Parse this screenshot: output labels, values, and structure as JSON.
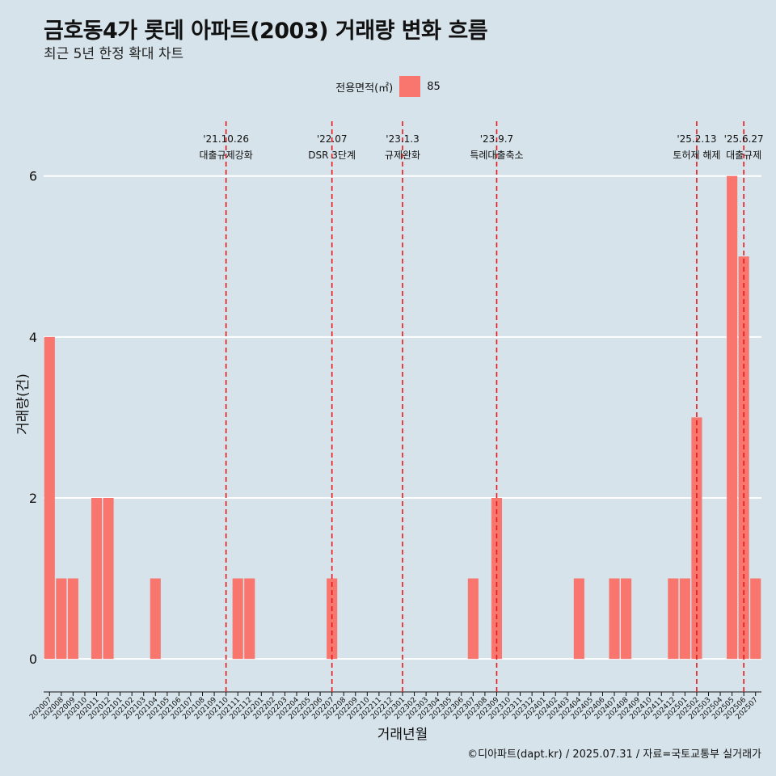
{
  "title": "금호동4가 롯데 아파트(2003) 거래량 변화 흐름",
  "subtitle": "최근 5년 한정 확대 차트",
  "caption": "©디아파트(dapt.kr) / 2025.07.31 / 자료=국토교통부 실거래가",
  "colors": {
    "background": "#d6e3ea",
    "bar": "#f8766d",
    "event_line": "#e41a1c",
    "grid": "#ffffff"
  },
  "legend": {
    "title": "전용면적(㎡)",
    "items": [
      {
        "label": "85",
        "color": "#f8766d"
      }
    ]
  },
  "chart_data": {
    "type": "bar",
    "xlabel": "거래년월",
    "ylabel": "거래량(건)",
    "ylim": [
      -0.3,
      6.7
    ],
    "yticks": [
      0,
      2,
      4,
      6
    ],
    "grid": "horizontal",
    "legend_position": "top-center",
    "categories": [
      "202007",
      "202008",
      "202009",
      "202010",
      "202011",
      "202012",
      "202101",
      "202102",
      "202103",
      "202104",
      "202105",
      "202106",
      "202107",
      "202108",
      "202109",
      "202110",
      "202111",
      "202112",
      "202201",
      "202202",
      "202203",
      "202204",
      "202205",
      "202206",
      "202207",
      "202208",
      "202209",
      "202210",
      "202211",
      "202212",
      "202301",
      "202302",
      "202303",
      "202304",
      "202305",
      "202306",
      "202307",
      "202308",
      "202309",
      "202310",
      "202311",
      "202312",
      "202401",
      "202402",
      "202403",
      "202404",
      "202405",
      "202406",
      "202407",
      "202408",
      "202409",
      "202410",
      "202411",
      "202412",
      "202501",
      "202502",
      "202503",
      "202504",
      "202505",
      "202506",
      "202507"
    ],
    "series": [
      {
        "name": "85",
        "values": [
          4,
          1,
          1,
          0,
          2,
          2,
          0,
          0,
          0,
          1,
          0,
          0,
          0,
          0,
          0,
          0,
          1,
          1,
          0,
          0,
          0,
          0,
          0,
          0,
          1,
          0,
          0,
          0,
          0,
          0,
          0,
          0,
          0,
          0,
          0,
          0,
          1,
          0,
          2,
          0,
          0,
          0,
          0,
          0,
          0,
          1,
          0,
          0,
          1,
          1,
          0,
          0,
          0,
          1,
          1,
          3,
          0,
          0,
          6,
          5,
          1
        ]
      }
    ],
    "annotations": [
      {
        "date": "'21.10.26",
        "label": "대출규제강화",
        "x": "202110"
      },
      {
        "date": "'22.07",
        "label": "DSR 3단계",
        "x": "202207"
      },
      {
        "date": "'23.1.3",
        "label": "규제완화",
        "x": "202301"
      },
      {
        "date": "'23.9.7",
        "label": "특례대출축소",
        "x": "202309"
      },
      {
        "date": "'25.2.13",
        "label": "토허제 해제",
        "x": "202502"
      },
      {
        "date": "'25.6.27",
        "label": "대출규제",
        "x": "202506"
      }
    ]
  }
}
